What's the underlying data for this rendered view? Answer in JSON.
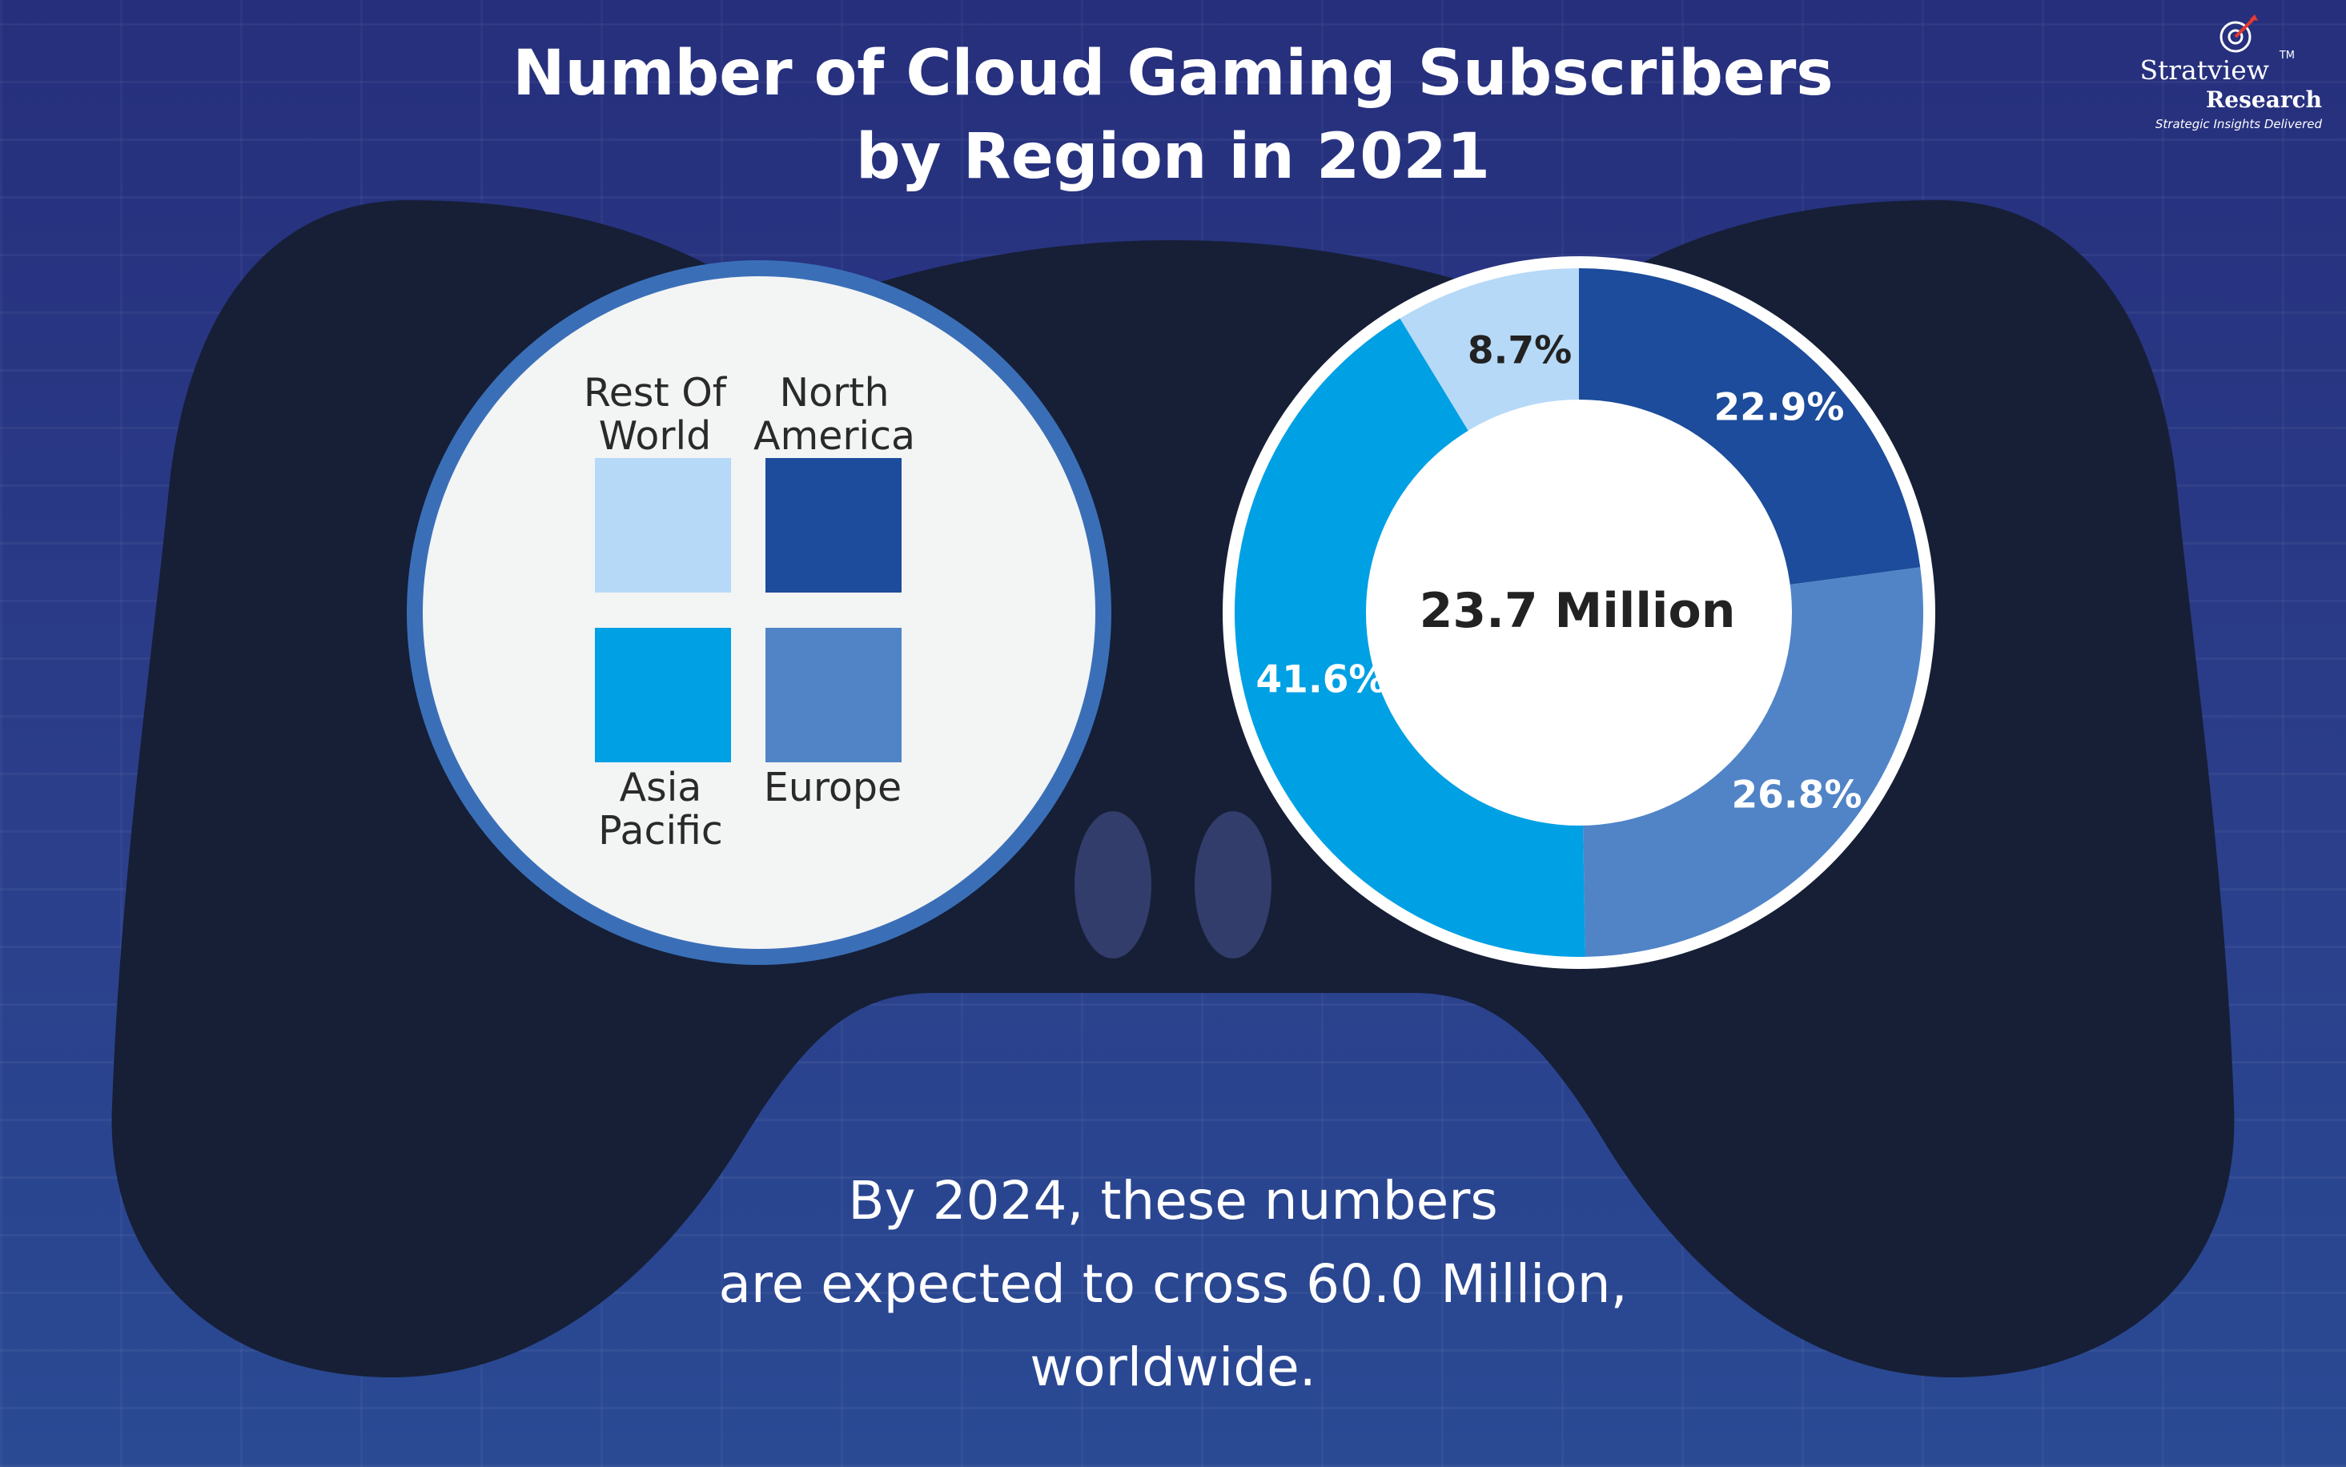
{
  "title_line1": "Number of Cloud Gaming Subscribers",
  "title_line2": "by Region in 2021",
  "logo": {
    "name": "Stratview",
    "trademark": "TM",
    "sub": "Research",
    "tagline": "Strategic Insights Delivered"
  },
  "colors": {
    "rest_of_world": "#b6d9f7",
    "north_america": "#1c4c9b",
    "europe": "#5084c7",
    "asia_pacific": "#00a0e4",
    "controller": "#161f36",
    "panel": "#f3f4f4",
    "ring": "#3a6fb8"
  },
  "legend": [
    {
      "label_line1": "Rest Of",
      "label_line2": "World",
      "color": "#b6d9f7"
    },
    {
      "label_line1": "North",
      "label_line2": "America",
      "color": "#1c4c9b"
    },
    {
      "label_line1": "Asia",
      "label_line2": "Pacific",
      "color": "#00a0e4"
    },
    {
      "label_line1": "Europe",
      "label_line2": "",
      "color": "#5084c7"
    }
  ],
  "chart_data": {
    "type": "pie",
    "title": "Number of Cloud Gaming Subscribers by Region in 2021",
    "center_label": "23.7 Million",
    "slices": [
      {
        "name": "North America",
        "value": 22.9,
        "label": "22.9%",
        "color": "#1c4c9b"
      },
      {
        "name": "Europe",
        "value": 26.8,
        "label": "26.8%",
        "color": "#5084c7"
      },
      {
        "name": "Asia Pacific",
        "value": 41.6,
        "label": "41.6%",
        "color": "#00a0e4"
      },
      {
        "name": "Rest Of World",
        "value": 8.7,
        "label": "8.7%",
        "color": "#b6d9f7"
      }
    ]
  },
  "footnote": {
    "line1": "By 2024, these numbers",
    "line2": "are expected to cross 60.0 Million,",
    "line3": "worldwide."
  }
}
